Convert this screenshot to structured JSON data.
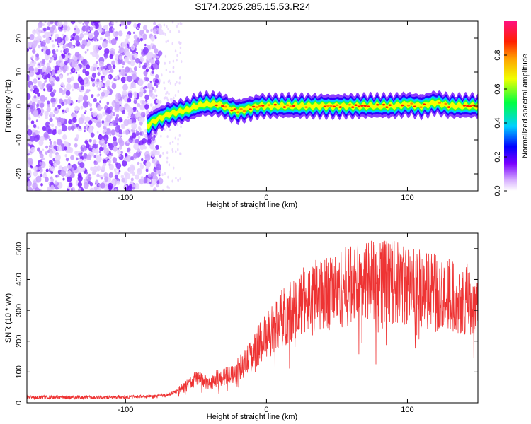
{
  "title": "S174.2025.285.15.53.R24",
  "chart_data": [
    {
      "type": "heatmap",
      "xlabel": "Height of straight line (km)",
      "ylabel": "Frequency (Hz)",
      "xlim": [
        -170,
        150
      ],
      "ylim": [
        -25,
        25
      ],
      "xticks": [
        -100,
        0,
        100
      ],
      "yticks": [
        -20,
        -10,
        0,
        10,
        20
      ],
      "ridge": {
        "x": [
          -85,
          -80,
          -75,
          -70,
          -65,
          -60,
          -55,
          -50,
          -45,
          -40,
          -35,
          -30,
          -25,
          -20,
          -15,
          -10,
          -5,
          0,
          10,
          20,
          30,
          40,
          50,
          60,
          70,
          80,
          90,
          100,
          110,
          120,
          130,
          140,
          150
        ],
        "y": [
          -6,
          -4.5,
          -3.5,
          -2.5,
          -2,
          -1.5,
          -1,
          0,
          0.5,
          0.5,
          0.5,
          0,
          -1,
          -1.5,
          -1,
          -0.5,
          0,
          0,
          0,
          0,
          0,
          0,
          0,
          0,
          0,
          0,
          0,
          0.5,
          0,
          1,
          0,
          0,
          0
        ]
      },
      "colorbar": {
        "label": "Normalized spectral amplitude",
        "range": [
          0,
          1
        ],
        "ticks": [
          "0.0",
          "0.2",
          "0.4",
          "0.6",
          "0.8"
        ]
      }
    },
    {
      "type": "line",
      "xlabel": "Height of straight line (km)",
      "ylabel": "SNR (10 * v/v)",
      "xlim": [
        -170,
        150
      ],
      "ylim": [
        0,
        550
      ],
      "xticks": [
        -100,
        0,
        100
      ],
      "yticks": [
        0,
        100,
        200,
        300,
        400,
        500
      ],
      "color": "#ee3333",
      "series": [
        {
          "x": [
            -170,
            -150,
            -130,
            -110,
            -90,
            -80,
            -70,
            -65,
            -60,
            -55,
            -50,
            -45,
            -40,
            -35,
            -30,
            -25,
            -20,
            -15,
            -10,
            -5,
            0,
            10,
            20,
            30,
            40,
            50,
            60,
            70,
            80,
            90,
            100,
            110,
            120,
            130,
            140,
            150
          ],
          "y": [
            18,
            18,
            18,
            18,
            20,
            20,
            25,
            35,
            45,
            60,
            80,
            70,
            60,
            80,
            85,
            90,
            110,
            130,
            160,
            190,
            220,
            270,
            310,
            340,
            350,
            370,
            380,
            390,
            400,
            390,
            380,
            370,
            360,
            350,
            340,
            320
          ]
        }
      ]
    }
  ]
}
